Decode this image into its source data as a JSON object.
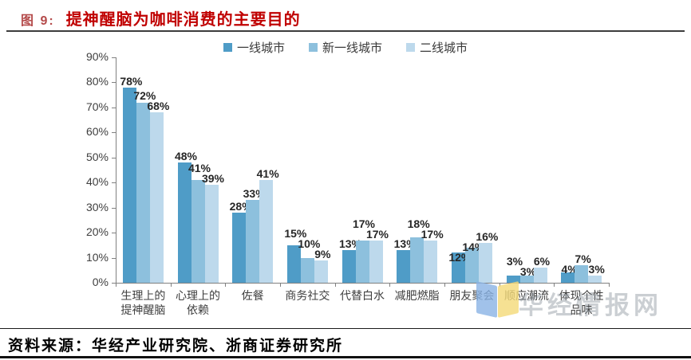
{
  "figure": {
    "prefix": "图 9:",
    "title": "提神醒脑为咖啡消费的主要目的"
  },
  "chart_data": {
    "type": "bar",
    "title": "提神醒脑为咖啡消费的主要目的",
    "categories": [
      [
        "生理上的",
        "提神醒脑"
      ],
      [
        "心理上的",
        "依赖"
      ],
      [
        "佐餐"
      ],
      [
        "商务社交"
      ],
      [
        "代替白水"
      ],
      [
        "减肥燃脂"
      ],
      [
        "朋友聚会"
      ],
      [
        "顺应潮流"
      ],
      [
        "体现个性",
        "品味"
      ]
    ],
    "series": [
      {
        "name": "一线城市",
        "color": "#4f9cc7",
        "values": [
          78,
          48,
          28,
          15,
          13,
          13,
          12,
          3,
          4
        ]
      },
      {
        "name": "新一线城市",
        "color": "#8dc0dd",
        "values": [
          72,
          41,
          33,
          10,
          17,
          18,
          14,
          3,
          7
        ]
      },
      {
        "name": "二线城市",
        "color": "#bdd9ec",
        "values": [
          68,
          39,
          41,
          9,
          17,
          17,
          16,
          6,
          3
        ]
      }
    ],
    "xlabel": "",
    "ylabel": "",
    "ylim": [
      0,
      90
    ],
    "y_tick_step": 10,
    "y_tick_format": "{v}%",
    "value_label_format": "{v}%",
    "legend_position": "top",
    "grid": false
  },
  "watermark": {
    "text": "华经情报网"
  },
  "footer": {
    "source": "资料来源：华经产业研究院、浙商证券研究所"
  }
}
